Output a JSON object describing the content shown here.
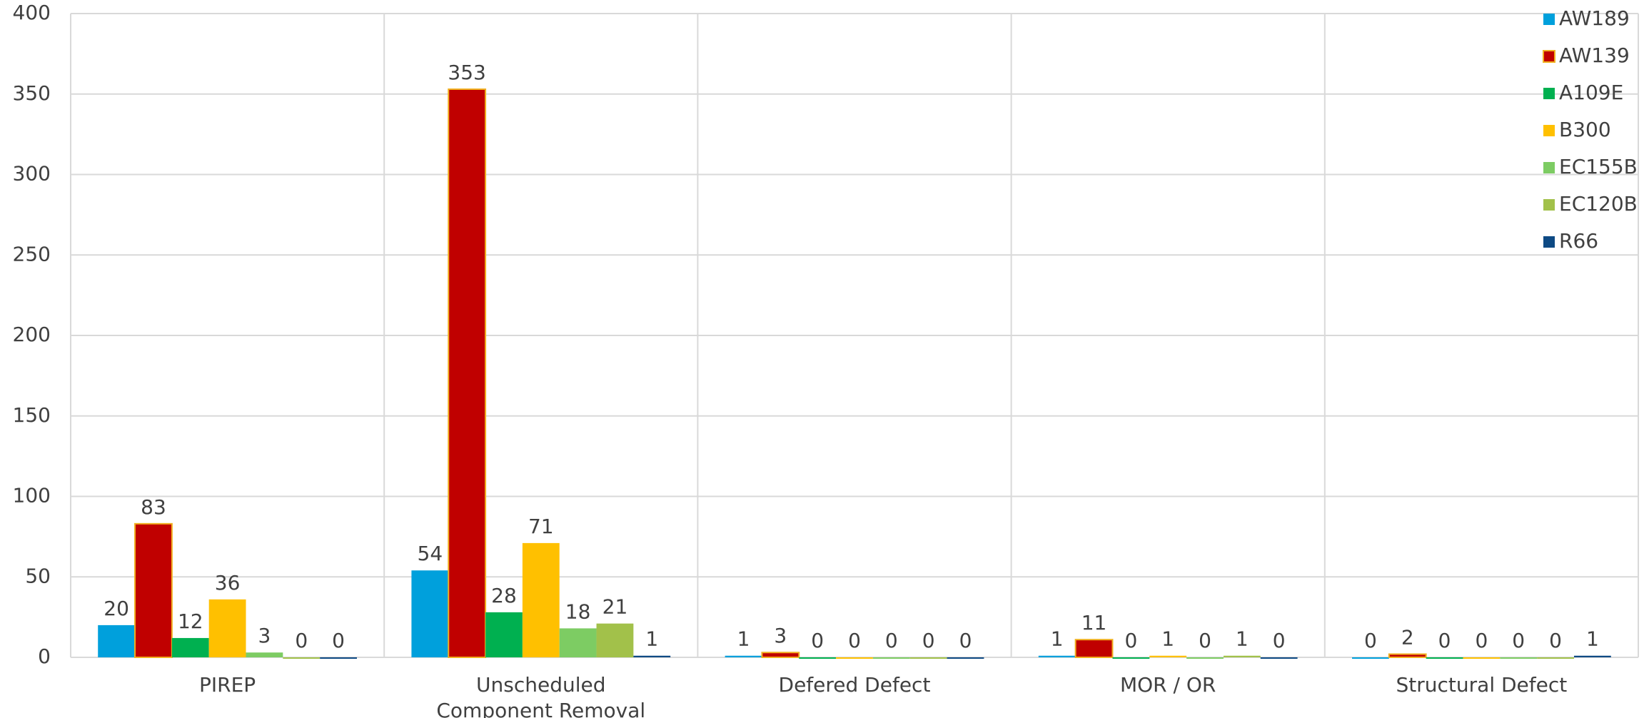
{
  "chart_data": {
    "type": "bar",
    "categories": [
      "PIREP",
      "Unscheduled Component Removal",
      "Defered Defect",
      "MOR / OR",
      "Structural Defect"
    ],
    "series": [
      {
        "name": "AW189",
        "color": "#00a0dc",
        "values": [
          20,
          54,
          1,
          1,
          0
        ]
      },
      {
        "name": "AW139",
        "color": "#c00000",
        "values": [
          83,
          353,
          3,
          11,
          2
        ]
      },
      {
        "name": "A109E",
        "color": "#00b050",
        "values": [
          12,
          28,
          0,
          0,
          0
        ]
      },
      {
        "name": "B300",
        "color": "#ffc000",
        "values": [
          36,
          71,
          0,
          1,
          0
        ]
      },
      {
        "name": "EC155B",
        "color": "#7dcc63",
        "values": [
          3,
          18,
          0,
          0,
          0
        ]
      },
      {
        "name": "EC120B",
        "color": "#a2c14a",
        "values": [
          0,
          21,
          0,
          1,
          0
        ]
      },
      {
        "name": "R66",
        "color": "#0e4a84",
        "values": [
          0,
          1,
          0,
          0,
          1
        ]
      }
    ],
    "ylim": [
      0,
      400
    ],
    "yticks": [
      0,
      50,
      100,
      150,
      200,
      250,
      300,
      350,
      400
    ],
    "grid": true,
    "legend": "top-right"
  }
}
